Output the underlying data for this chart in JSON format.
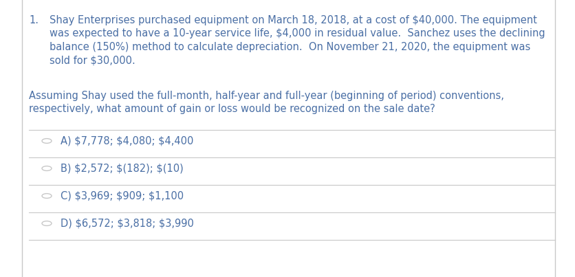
{
  "background_color": "#ffffff",
  "border_color": "#c8c8c8",
  "text_color": "#4a6fa5",
  "question_number": "1.",
  "paragraph_line1": "Shay Enterprises purchased equipment on March 18, 2018, at a cost of $40,000. The equipment",
  "paragraph_line2": "was expected to have a 10-year service life, $4,000 in residual value.  Sanchez uses the declining",
  "paragraph_line3": "balance (150%) method to calculate depreciation.  On November 21, 2020, the equipment was",
  "paragraph_line4": "sold for $30,000.",
  "subq_line1": "Assuming Shay used the full-month, half-year and full-year (beginning of period) conventions,",
  "subq_line2": "respectively, what amount of gain or loss would be recognized on the sale date?",
  "choices": [
    "A) $7,778; $4,080; $4,400",
    "B) $2,572; $(182); $(10)",
    "C) $3,969; $909; $1,100",
    "D) $6,572; $3,818; $3,990"
  ],
  "font_size": 10.5,
  "figwidth": 8.36,
  "figheight": 4.03,
  "dpi": 100
}
